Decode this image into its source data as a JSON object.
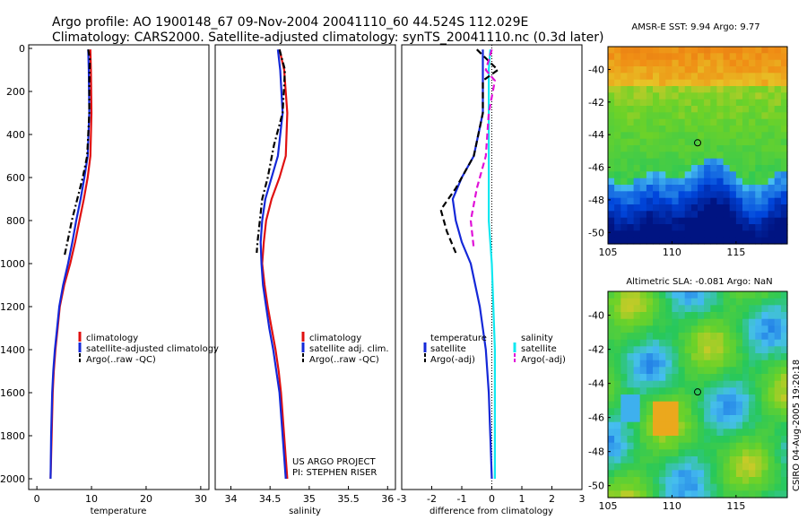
{
  "title_line1": "Argo profile: AO 1900148_67 09-Nov-2004 20041110_60 44.524S 112.029E",
  "title_line2": "Climatology: CARS2000. Satellite-adjusted climatology: synTS_20041110.nc (0.3d later)",
  "colors": {
    "clim": "#e01010",
    "sat": "#1428d8",
    "argo": "#000000",
    "cyan": "#10e8f0",
    "magenta": "#e010d8"
  },
  "chart_data": [
    {
      "type": "line",
      "xlabel": "temperature",
      "xlim": [
        -1.5,
        31.5
      ],
      "ylim": [
        0,
        2050
      ],
      "xticks": [
        "0",
        "10",
        "20",
        "30"
      ],
      "xtickvals": [
        0,
        10,
        20,
        30
      ],
      "yticks": [
        "0",
        "200",
        "400",
        "600",
        "800",
        "1000",
        "1200",
        "1400",
        "1600",
        "1800",
        "2000"
      ],
      "ytickvals": [
        0,
        200,
        400,
        600,
        800,
        1000,
        1200,
        1400,
        1600,
        1800,
        2000
      ],
      "legend": [
        "climatology",
        "satellite-adjusted climatology",
        "Argo(..raw -QC)"
      ],
      "series": [
        {
          "key": "clim",
          "style": "solid",
          "points": [
            [
              9.8,
              5
            ],
            [
              9.9,
              100
            ],
            [
              10.0,
              300
            ],
            [
              9.8,
              500
            ],
            [
              9.3,
              600
            ],
            [
              8.6,
              700
            ],
            [
              7.8,
              800
            ],
            [
              7.0,
              900
            ],
            [
              6.1,
              1000
            ],
            [
              5.0,
              1100
            ],
            [
              4.2,
              1200
            ],
            [
              3.8,
              1300
            ],
            [
              3.4,
              1400
            ],
            [
              3.1,
              1500
            ],
            [
              2.9,
              1600
            ],
            [
              2.7,
              1800
            ],
            [
              2.5,
              2000
            ]
          ]
        },
        {
          "key": "sat",
          "style": "solid",
          "points": [
            [
              9.4,
              5
            ],
            [
              9.5,
              100
            ],
            [
              9.6,
              300
            ],
            [
              9.3,
              500
            ],
            [
              8.7,
              600
            ],
            [
              8.0,
              700
            ],
            [
              7.2,
              800
            ],
            [
              6.5,
              900
            ],
            [
              5.7,
              1000
            ],
            [
              4.8,
              1100
            ],
            [
              4.1,
              1200
            ],
            [
              3.7,
              1300
            ],
            [
              3.3,
              1400
            ],
            [
              3.0,
              1500
            ],
            [
              2.8,
              1600
            ],
            [
              2.6,
              1800
            ],
            [
              2.5,
              2000
            ]
          ]
        },
        {
          "key": "argo",
          "style": "dashdot",
          "points": [
            [
              9.4,
              5
            ],
            [
              9.7,
              50
            ],
            [
              9.6,
              150
            ],
            [
              9.6,
              300
            ],
            [
              9.2,
              500
            ],
            [
              8.4,
              600
            ],
            [
              7.4,
              700
            ],
            [
              6.4,
              800
            ],
            [
              5.6,
              900
            ],
            [
              5.0,
              970
            ]
          ]
        }
      ]
    },
    {
      "type": "line",
      "xlabel": "salinity",
      "xlim": [
        33.8,
        36.1
      ],
      "ylim": [
        0,
        2050
      ],
      "xticks": [
        "34",
        "34.5",
        "35",
        "35.5",
        "36"
      ],
      "xtickvals": [
        34,
        34.5,
        35,
        35.5,
        36
      ],
      "legend": [
        "climatology",
        "satellite adj. clim.",
        "Argo(..raw -QC)"
      ],
      "annotation": [
        "US ARGO PROJECT",
        "PI: STEPHEN RISER"
      ],
      "series": [
        {
          "key": "clim",
          "style": "solid",
          "points": [
            [
              34.62,
              5
            ],
            [
              34.68,
              100
            ],
            [
              34.72,
              300
            ],
            [
              34.7,
              500
            ],
            [
              34.62,
              600
            ],
            [
              34.52,
              700
            ],
            [
              34.45,
              800
            ],
            [
              34.42,
              900
            ],
            [
              34.4,
              1000
            ],
            [
              34.43,
              1100
            ],
            [
              34.47,
              1200
            ],
            [
              34.52,
              1300
            ],
            [
              34.57,
              1400
            ],
            [
              34.61,
              1500
            ],
            [
              34.64,
              1600
            ],
            [
              34.68,
              1800
            ],
            [
              34.72,
              2000
            ]
          ]
        },
        {
          "key": "sat",
          "style": "solid",
          "points": [
            [
              34.6,
              5
            ],
            [
              34.63,
              100
            ],
            [
              34.66,
              300
            ],
            [
              34.6,
              500
            ],
            [
              34.52,
              600
            ],
            [
              34.44,
              700
            ],
            [
              34.4,
              800
            ],
            [
              34.38,
              900
            ],
            [
              34.39,
              1000
            ],
            [
              34.41,
              1100
            ],
            [
              34.45,
              1200
            ],
            [
              34.49,
              1300
            ],
            [
              34.54,
              1400
            ],
            [
              34.58,
              1500
            ],
            [
              34.62,
              1600
            ],
            [
              34.66,
              1800
            ],
            [
              34.7,
              2000
            ]
          ]
        },
        {
          "key": "argo",
          "style": "dashdot",
          "points": [
            [
              34.62,
              5
            ],
            [
              34.69,
              100
            ],
            [
              34.66,
              300
            ],
            [
              34.55,
              450
            ],
            [
              34.47,
              600
            ],
            [
              34.4,
              700
            ],
            [
              34.37,
              800
            ],
            [
              34.34,
              900
            ],
            [
              34.33,
              950
            ]
          ]
        }
      ]
    },
    {
      "type": "line",
      "xlabel": "difference from climatology",
      "xlim": [
        -3,
        3
      ],
      "ylim": [
        0,
        2050
      ],
      "xticks": [
        "-3",
        "-2",
        "-1",
        "0",
        "1",
        "2",
        "3"
      ],
      "xtickvals": [
        -3,
        -2,
        -1,
        0,
        1,
        2,
        3
      ],
      "legend_left": [
        "temperature",
        "satellite",
        "Argo(-adj)"
      ],
      "legend_right": [
        "salinity",
        "satellite",
        "Argo(-adj)"
      ],
      "series": [
        {
          "key": "sat",
          "style": "solid",
          "points": [
            [
              -0.3,
              5
            ],
            [
              -0.3,
              100
            ],
            [
              -0.3,
              300
            ],
            [
              -0.6,
              500
            ],
            [
              -1.0,
              600
            ],
            [
              -1.3,
              700
            ],
            [
              -1.2,
              800
            ],
            [
              -1.0,
              900
            ],
            [
              -0.7,
              1000
            ],
            [
              -0.4,
              1200
            ],
            [
              -0.2,
              1400
            ],
            [
              -0.1,
              1600
            ],
            [
              -0.05,
              1800
            ],
            [
              0,
              2000
            ]
          ]
        },
        {
          "key": "cyan",
          "style": "solid",
          "points": [
            [
              -0.05,
              5
            ],
            [
              -0.1,
              100
            ],
            [
              -0.1,
              300
            ],
            [
              -0.1,
              500
            ],
            [
              -0.1,
              600
            ],
            [
              -0.1,
              700
            ],
            [
              -0.1,
              800
            ],
            [
              -0.05,
              900
            ],
            [
              0,
              1000
            ],
            [
              0.05,
              1200
            ],
            [
              0.1,
              1400
            ],
            [
              0.1,
              1600
            ],
            [
              0.1,
              1800
            ],
            [
              0.1,
              2000
            ]
          ]
        },
        {
          "key": "argo",
          "style": "dashed",
          "points": [
            [
              -0.5,
              5
            ],
            [
              0.2,
              100
            ],
            [
              -0.3,
              150
            ],
            [
              -0.3,
              300
            ],
            [
              -0.6,
              500
            ],
            [
              -1.2,
              650
            ],
            [
              -1.7,
              750
            ],
            [
              -1.5,
              850
            ],
            [
              -1.2,
              950
            ]
          ]
        },
        {
          "key": "magenta",
          "style": "dashed",
          "points": [
            [
              0,
              5
            ],
            [
              -0.2,
              100
            ],
            [
              0.1,
              150
            ],
            [
              -0.1,
              300
            ],
            [
              -0.2,
              500
            ],
            [
              -0.5,
              650
            ],
            [
              -0.7,
              800
            ],
            [
              -0.6,
              930
            ]
          ]
        }
      ]
    }
  ],
  "map1": {
    "title": "AMSR-E SST: 9.94 Argo: 9.77",
    "xticks": [
      "105",
      "110",
      "115"
    ],
    "xtickvals": [
      105,
      110,
      115
    ],
    "yticks": [
      "-40",
      "-42",
      "-44",
      "-46",
      "-48",
      "-50"
    ],
    "ytickvals": [
      -40,
      -42,
      -44,
      -46,
      -48,
      -50
    ],
    "xlim": [
      105,
      119
    ],
    "ylim": [
      -50.7,
      -38.6
    ],
    "marker": [
      112.0,
      -44.5
    ]
  },
  "map2": {
    "title": "Altimetric SLA: -0.081 Argo: NaN",
    "xticks": [
      "105",
      "110",
      "115"
    ],
    "xtickvals": [
      105,
      110,
      115
    ],
    "yticks": [
      "-40",
      "-42",
      "-44",
      "-46",
      "-48",
      "-50"
    ],
    "ytickvals": [
      -40,
      -42,
      -44,
      -46,
      -48,
      -50
    ],
    "xlim": [
      105,
      119
    ],
    "ylim": [
      -50.7,
      -38.6
    ],
    "marker": [
      112.0,
      -44.5
    ]
  },
  "credit": "CSIRO 04-Aug-2005 19:20:18"
}
